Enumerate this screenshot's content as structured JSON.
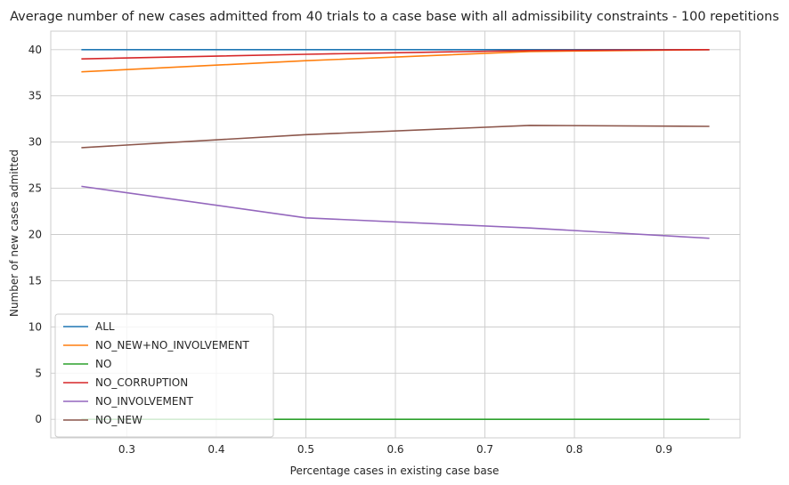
{
  "chart_data": {
    "type": "line",
    "title": "Average number of new cases admitted from 40 trials to a case base with all admissibility constraints - 100 repetitions",
    "xlabel": "Percentage cases in existing case base",
    "ylabel": "Number of new cases admitted",
    "xlim": [
      0.215,
      0.985
    ],
    "ylim": [
      -2.0,
      42.0
    ],
    "x_ticks": [
      "0.3",
      "0.4",
      "0.5",
      "0.6",
      "0.7",
      "0.8",
      "0.9"
    ],
    "y_ticks": [
      "0",
      "5",
      "10",
      "15",
      "20",
      "25",
      "30",
      "35",
      "40"
    ],
    "grid": true,
    "legend_position": "lower-left",
    "x": [
      0.25,
      0.5,
      0.75,
      0.95
    ],
    "series": [
      {
        "name": "ALL",
        "color": "#1f77b4",
        "values": [
          40.0,
          40.0,
          40.0,
          40.0
        ]
      },
      {
        "name": "NO_NEW+NO_INVOLVEMENT",
        "color": "#ff7f0e",
        "values": [
          37.6,
          38.8,
          39.8,
          40.0
        ]
      },
      {
        "name": "NO",
        "color": "#2ca02c",
        "values": [
          0.0,
          0.0,
          0.0,
          0.0
        ]
      },
      {
        "name": "NO_CORRUPTION",
        "color": "#d62728",
        "values": [
          39.0,
          39.5,
          39.9,
          40.0
        ]
      },
      {
        "name": "NO_INVOLVEMENT",
        "color": "#9467bd",
        "values": [
          25.2,
          21.8,
          20.7,
          19.6
        ]
      },
      {
        "name": "NO_NEW",
        "color": "#8c564b",
        "values": [
          29.4,
          30.8,
          31.8,
          31.7
        ]
      }
    ]
  }
}
